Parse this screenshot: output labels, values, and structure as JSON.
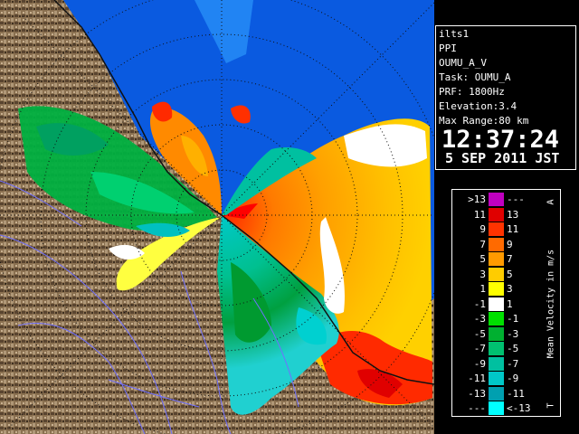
{
  "info": {
    "site": "ilts1",
    "scan": "PPI",
    "product": "OUMU_A_V",
    "task": "Task: OUMU_A",
    "prf": "PRF: 1800Hz",
    "elevation": "Elevation:3.4",
    "range": "Max Range:80 km",
    "time": "12:37:24",
    "date": "5 SEP 2011 JST"
  },
  "legend": {
    "title": "Mean Velocity in m/s",
    "top_mark": "A",
    "bottom_mark": "T",
    "rows": [
      {
        "left": ">13",
        "right": "---",
        "color": "#c000c0"
      },
      {
        "left": "11",
        "right": "13",
        "color": "#e00000"
      },
      {
        "left": "9",
        "right": "11",
        "color": "#ff3300"
      },
      {
        "left": "7",
        "right": "9",
        "color": "#ff6a00"
      },
      {
        "left": "5",
        "right": "7",
        "color": "#ff9a00"
      },
      {
        "left": "3",
        "right": "5",
        "color": "#ffcc00"
      },
      {
        "left": "1",
        "right": "3",
        "color": "#ffff00"
      },
      {
        "left": "-1",
        "right": "1",
        "color": "#ffffff"
      },
      {
        "left": "-3",
        "right": "-1",
        "color": "#00e000"
      },
      {
        "left": "-5",
        "right": "-3",
        "color": "#00b030"
      },
      {
        "left": "-7",
        "right": "-5",
        "color": "#00c070"
      },
      {
        "left": "-9",
        "right": "-7",
        "color": "#00c0a0"
      },
      {
        "left": "-11",
        "right": "-9",
        "color": "#00c8c8"
      },
      {
        "left": "-13",
        "right": "-11",
        "color": "#00a0b0"
      },
      {
        "left": "---",
        "right": "<-13",
        "color": "#00ffff"
      }
    ]
  },
  "colors": {
    "clear_air": "#0a5ae0",
    "terrain": "#8b7355",
    "coast": "#222222",
    "rivers": "#7070ff"
  }
}
